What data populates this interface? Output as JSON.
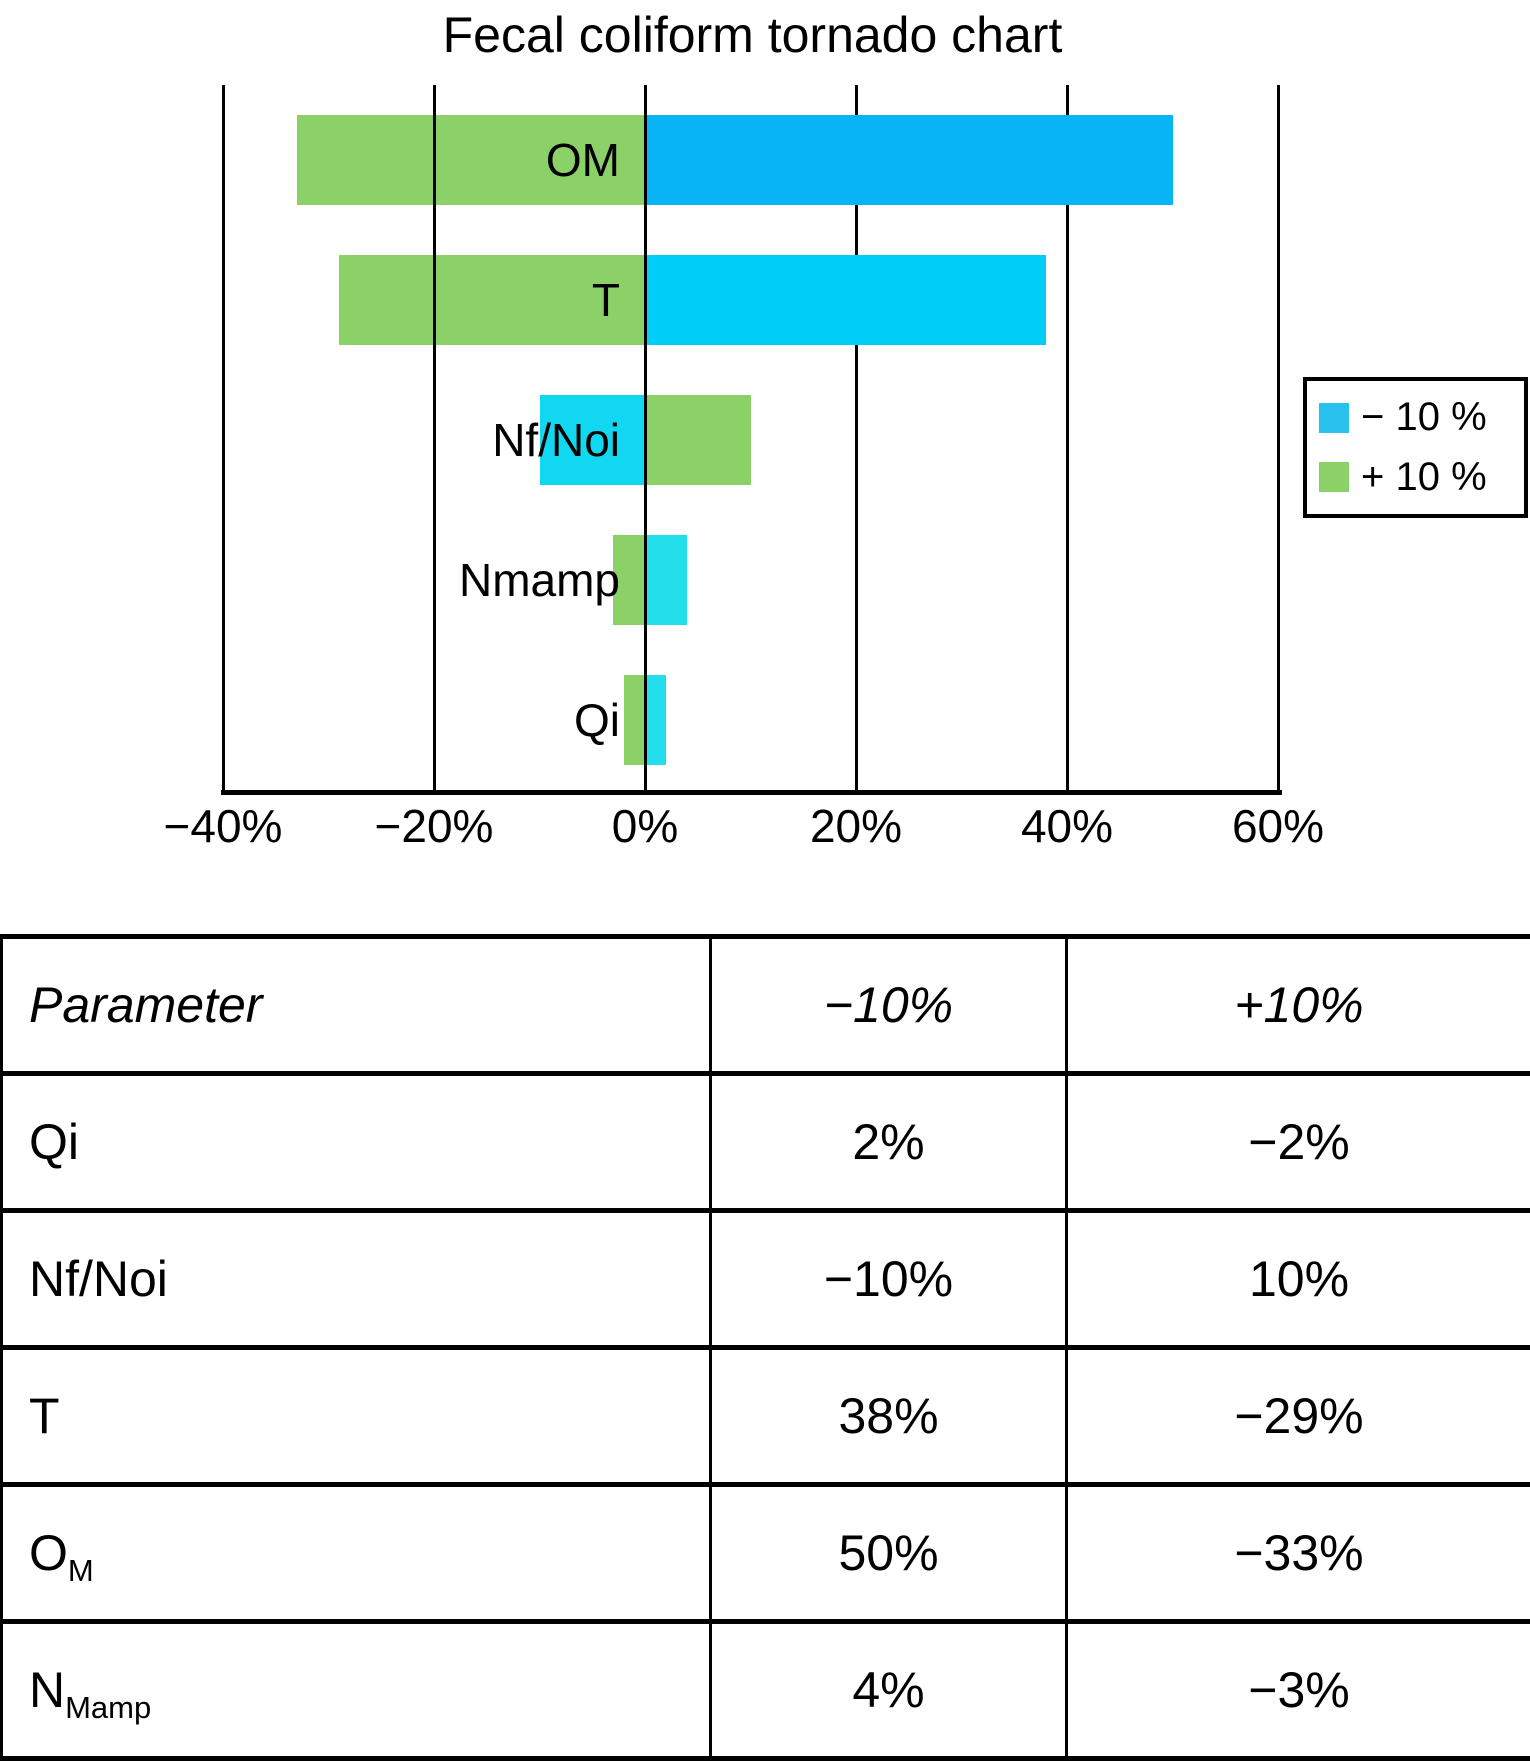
{
  "chart_data": {
    "type": "bar",
    "variant": "tornado",
    "title": "Fecal coliform tornado chart",
    "xlabel": "",
    "ylabel": "",
    "xlim": [
      -40,
      60
    ],
    "x_tick_values": [
      -40,
      -20,
      0,
      20,
      40,
      60
    ],
    "x_tick_labels": [
      "−40%",
      "−20%",
      "0%",
      "20%",
      "40%",
      "60%"
    ],
    "grid": "vertical",
    "legend_position": "right",
    "bars": [
      {
        "label": "OM",
        "minus_10": 50,
        "plus_10": -33,
        "minus_color": "#09B4F6",
        "plus_color": "#8CD168"
      },
      {
        "label": "T",
        "minus_10": 38,
        "plus_10": -29,
        "minus_color": "#00CEF7",
        "plus_color": "#8CD168"
      },
      {
        "label": "Nf/Noi",
        "minus_10": -10,
        "plus_10": 10,
        "minus_color": "#12D7F0",
        "plus_color": "#8CD168"
      },
      {
        "label": "Nmamp",
        "minus_10": 4,
        "plus_10": -3,
        "minus_color": "#23DFEC",
        "plus_color": "#8CD168"
      },
      {
        "label": "Qi",
        "minus_10": 2,
        "plus_10": -2,
        "minus_color": "#23DFEC",
        "plus_color": "#8CD168"
      }
    ],
    "legend": {
      "items": [
        {
          "label": "− 10 %",
          "color": "#29C1ED"
        },
        {
          "label": "+ 10 %",
          "color": "#8CD168"
        }
      ]
    },
    "colors": {
      "axis": "#000000",
      "text": "#000000",
      "background": "#ffffff"
    }
  },
  "table": {
    "headers": [
      "Parameter",
      "−10%",
      "+10%"
    ],
    "rows": [
      {
        "parameter": {
          "main": "Qi",
          "sub": ""
        },
        "minus_10": "2%",
        "plus_10": "−2%"
      },
      {
        "parameter": {
          "main": "Nf/Noi",
          "sub": ""
        },
        "minus_10": "−10%",
        "plus_10": "10%"
      },
      {
        "parameter": {
          "main": "T",
          "sub": ""
        },
        "minus_10": "38%",
        "plus_10": "−29%"
      },
      {
        "parameter": {
          "main": "O",
          "sub": "M"
        },
        "minus_10": "50%",
        "plus_10": "−33%"
      },
      {
        "parameter": {
          "main": "N",
          "sub": "Mamp"
        },
        "minus_10": "4%",
        "plus_10": "−3%"
      }
    ]
  }
}
